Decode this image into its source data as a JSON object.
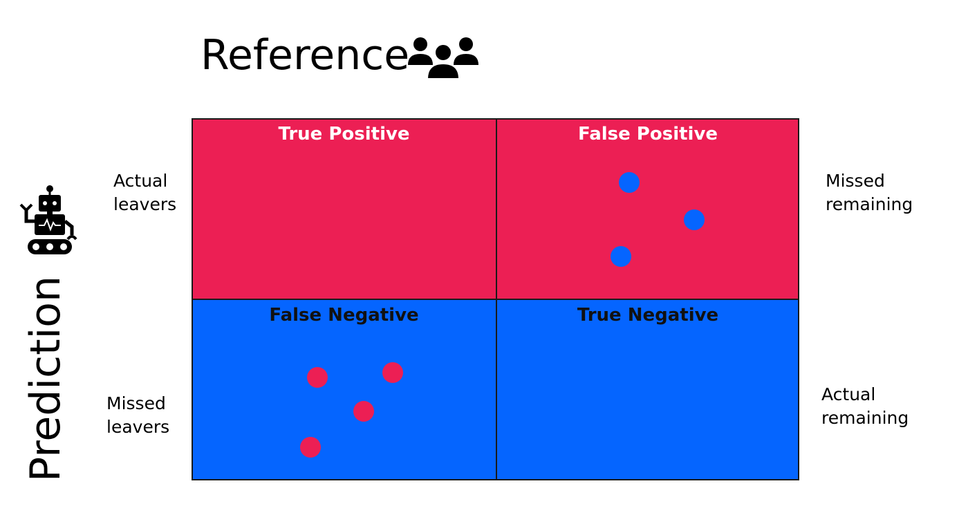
{
  "reference": {
    "title": "Reference",
    "icon": "people-group-icon"
  },
  "prediction": {
    "title": "Prediction",
    "icon": "robot-icon"
  },
  "matrix": {
    "cells": [
      {
        "title": "True Positive",
        "color": "#EC1F54"
      },
      {
        "title": "False Positive",
        "color": "#EC1F54"
      },
      {
        "title": "False Negative",
        "color": "#0565FF"
      },
      {
        "title": "True Negative",
        "color": "#0565FF"
      }
    ]
  },
  "row_labels_left": [
    {
      "line1": "Actual",
      "line2": "leavers"
    },
    {
      "line1": "Missed",
      "line2": "leavers"
    }
  ],
  "row_labels_right": [
    {
      "line1": "Missed",
      "line2": "remaining"
    },
    {
      "line1": "Actual",
      "line2": "remaining"
    }
  ],
  "dots": {
    "false_positive_count": 3,
    "false_negative_count": 4,
    "false_positive_color": "#0565FF",
    "false_negative_color": "#EC1F54"
  }
}
